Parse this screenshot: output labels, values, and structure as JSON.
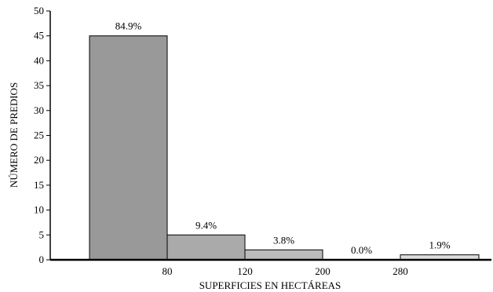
{
  "chart_data": {
    "type": "bar",
    "xlabel": "SUPERFICIES EN HECTÁREAS",
    "ylabel": "NÚMERO DE PREDIOS",
    "ylim": [
      0,
      50
    ],
    "yticks": [
      0,
      5,
      10,
      15,
      20,
      25,
      30,
      35,
      40,
      45,
      50
    ],
    "xticks": [
      "80",
      "120",
      "200",
      "280"
    ],
    "grid": false,
    "bars": [
      {
        "value": 45,
        "label": "84.9%",
        "color": "#999999"
      },
      {
        "value": 5,
        "label": "9.4%",
        "color": "#aaaaaa"
      },
      {
        "value": 2,
        "label": "3.8%",
        "color": "#bbbbbb"
      },
      {
        "value": 0,
        "label": "0.0%",
        "color": "#cccccc"
      },
      {
        "value": 1,
        "label": "1.9%",
        "color": "#dddddd"
      }
    ]
  }
}
